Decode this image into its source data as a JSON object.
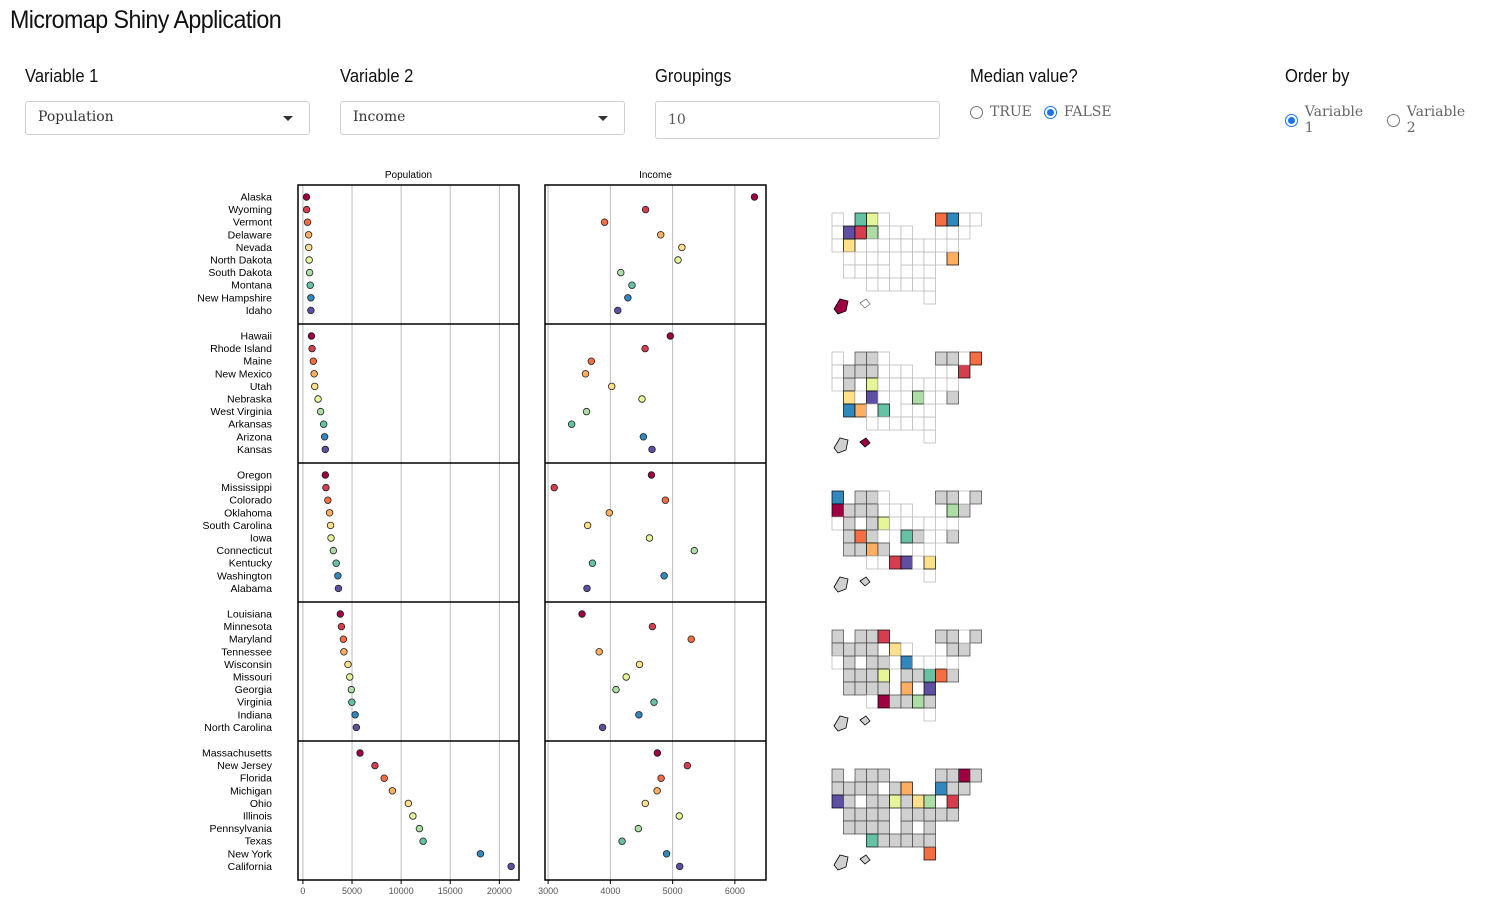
{
  "app": {
    "title": "Micromap Shiny Application"
  },
  "controls": {
    "variable1": {
      "label": "Variable 1",
      "value": "Population"
    },
    "variable2": {
      "label": "Variable 2",
      "value": "Income"
    },
    "groupings": {
      "label": "Groupings",
      "value": "10"
    },
    "median": {
      "label": "Median value?",
      "options": [
        "TRUE",
        "FALSE"
      ],
      "selected": "FALSE"
    },
    "order_by": {
      "label": "Order by",
      "options": [
        "Variable 1",
        "Variable 2"
      ],
      "selected": "Variable 1"
    }
  },
  "chart_data": {
    "type": "scatter",
    "panel_titles": [
      "Population",
      "Income"
    ],
    "group_colors": [
      "#9e0142",
      "#d53e4f",
      "#f46d43",
      "#fdae61",
      "#fee08b",
      "#e6f598",
      "#abdda4",
      "#66c2a5",
      "#3288bd",
      "#5e4fa2"
    ],
    "population_axis": {
      "ticks": [
        0,
        5000,
        10000,
        15000,
        20000
      ],
      "xlim": [
        -500,
        22000
      ]
    },
    "income_axis": {
      "ticks": [
        3000,
        4000,
        5000,
        6000
      ],
      "xlim": [
        2950,
        6500
      ]
    },
    "groups": [
      {
        "states": [
          "Alaska",
          "Wyoming",
          "Vermont",
          "Delaware",
          "Nevada",
          "North Dakota",
          "South Dakota",
          "Montana",
          "New Hampshire",
          "Idaho"
        ],
        "population": [
          365,
          376,
          472,
          579,
          590,
          637,
          681,
          746,
          812,
          813
        ],
        "income": [
          6315,
          4566,
          3907,
          4809,
          5149,
          5087,
          4167,
          4347,
          4281,
          4119
        ]
      },
      {
        "states": [
          "Hawaii",
          "Rhode Island",
          "Maine",
          "New Mexico",
          "Utah",
          "Nebraska",
          "West Virginia",
          "Arkansas",
          "Arizona",
          "Kansas"
        ],
        "population": [
          868,
          931,
          1058,
          1144,
          1203,
          1544,
          1799,
          2110,
          2212,
          2280
        ],
        "income": [
          4963,
          4558,
          3694,
          3601,
          4022,
          4508,
          3617,
          3378,
          4530,
          4669
        ]
      },
      {
        "states": [
          "Oregon",
          "Mississippi",
          "Colorado",
          "Oklahoma",
          "South Carolina",
          "Iowa",
          "Connecticut",
          "Kentucky",
          "Washington",
          "Alabama"
        ],
        "population": [
          2284,
          2341,
          2541,
          2715,
          2816,
          2861,
          3100,
          3387,
          3559,
          3615
        ],
        "income": [
          4660,
          3098,
          4884,
          3983,
          3635,
          4628,
          5348,
          3712,
          4864,
          3624
        ]
      },
      {
        "states": [
          "Louisiana",
          "Minnesota",
          "Maryland",
          "Tennessee",
          "Wisconsin",
          "Missouri",
          "Georgia",
          "Virginia",
          "Indiana",
          "North Carolina"
        ],
        "population": [
          3806,
          3921,
          4122,
          4173,
          4589,
          4767,
          4931,
          4981,
          5313,
          5441
        ],
        "income": [
          3545,
          4675,
          5299,
          3821,
          4468,
          4254,
          4091,
          4701,
          4458,
          3875
        ]
      },
      {
        "states": [
          "Massachusetts",
          "New Jersey",
          "Florida",
          "Michigan",
          "Ohio",
          "Illinois",
          "Pennsylvania",
          "Texas",
          "New York",
          "California"
        ],
        "population": [
          5814,
          7333,
          8277,
          9111,
          10735,
          11197,
          11860,
          12237,
          18076,
          21198
        ],
        "income": [
          4755,
          5237,
          4815,
          4751,
          4561,
          5107,
          4449,
          4188,
          4903,
          5114
        ]
      }
    ]
  }
}
